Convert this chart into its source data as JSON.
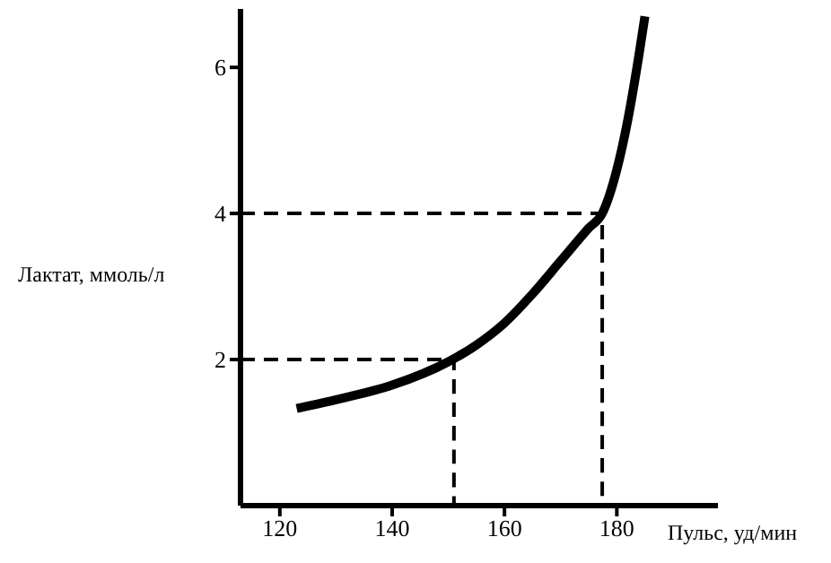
{
  "chart_data": {
    "type": "line",
    "xlabel": "Пульс, уд/мин",
    "ylabel": "Лактат, ммоль/л",
    "xlim": [
      113,
      198
    ],
    "xticks": [
      120,
      140,
      160,
      180
    ],
    "ylim": [
      0,
      6.8
    ],
    "yticks": [
      2,
      4,
      6
    ],
    "grid": false,
    "marker": "none",
    "series": [
      {
        "color": "#000000",
        "line_style": "solid",
        "x": [
          123,
          130,
          140,
          150,
          155,
          160,
          165,
          170,
          175,
          177.4,
          180,
          182,
          184,
          185
        ],
        "values": [
          1.33,
          1.45,
          1.65,
          1.97,
          2.2,
          2.5,
          2.9,
          3.35,
          3.8,
          4,
          4.6,
          5.3,
          6.2,
          6.7
        ]
      },
      {
        "color": "#000000",
        "line_style": "dashed",
        "x": [
          113,
          151,
          151
        ],
        "values": [
          2,
          2,
          0
        ]
      },
      {
        "color": "#000000",
        "line_style": "dashed",
        "x": [
          113,
          177.4,
          177.4
        ],
        "values": [
          4,
          4,
          0
        ]
      }
    ]
  }
}
